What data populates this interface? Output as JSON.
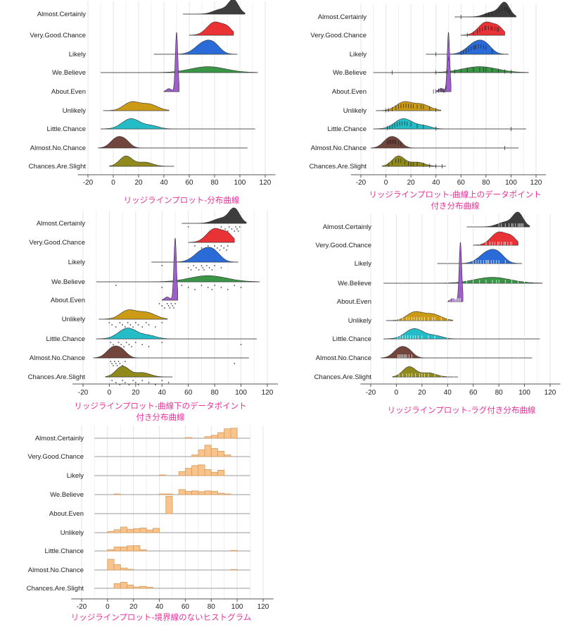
{
  "chart_data": [
    {
      "type": "ridgeline",
      "variant": "density",
      "caption": [
        "リッジラインプロット-分布曲線"
      ],
      "categories": [
        "Almost.Certainly",
        "Very.Good.Chance",
        "Likely",
        "We.Believe",
        "About.Even",
        "Unlikely",
        "Little.Chance",
        "Almost.No.Chance",
        "Chances.Are.Slight"
      ],
      "x_ticks": [
        -20,
        0,
        20,
        40,
        60,
        80,
        100,
        120
      ],
      "xlim": [
        -28,
        128
      ],
      "grid": true
    },
    {
      "type": "ridgeline",
      "variant": "density-with-points-on-curve",
      "caption": [
        "リッジラインプロット-曲線上のデータポイント",
        "付き分布曲線"
      ],
      "categories": [
        "Almost.Certainly",
        "Very.Good.Chance",
        "Likely",
        "We.Believe",
        "About.Even",
        "Unlikely",
        "Little.Chance",
        "Almost.No.Chance",
        "Chances.Are.Slight"
      ],
      "x_ticks": [
        -20,
        0,
        20,
        40,
        60,
        80,
        100,
        120
      ],
      "xlim": [
        -28,
        128
      ],
      "grid": true
    },
    {
      "type": "ridgeline",
      "variant": "density-with-points-below",
      "caption": [
        "リッジラインプロット-曲線下のデータポイント",
        "付き分布曲線"
      ],
      "categories": [
        "Almost.Certainly",
        "Very.Good.Chance",
        "Likely",
        "We.Believe",
        "About.Even",
        "Unlikely",
        "Little.Chance",
        "Almost.No.Chance",
        "Chances.Are.Slight"
      ],
      "x_ticks": [
        -20,
        0,
        20,
        40,
        60,
        80,
        100,
        120
      ],
      "xlim": [
        -28,
        128
      ],
      "grid": true
    },
    {
      "type": "ridgeline",
      "variant": "density-with-rug",
      "caption": [
        "リッジラインプロット-ラグ付き分布曲線"
      ],
      "categories": [
        "Almost.Certainly",
        "Very.Good.Chance",
        "Likely",
        "We.Believe",
        "About.Even",
        "Unlikely",
        "Little.Chance",
        "Almost.No.Chance",
        "Chances.Are.Slight"
      ],
      "x_ticks": [
        -20,
        0,
        20,
        40,
        60,
        80,
        100,
        120
      ],
      "xlim": [
        -28,
        128
      ],
      "grid": true
    },
    {
      "type": "ridgeline",
      "variant": "histogram-no-border",
      "caption": [
        "リッジラインプロット-境界線のないヒストグラム"
      ],
      "categories": [
        "Almost.Certainly",
        "Very.Good.Chance",
        "Likely",
        "We.Believe",
        "About.Even",
        "Unlikely",
        "Little.Chance",
        "Almost.No.Chance",
        "Chances.Are.Slight"
      ],
      "x_ticks": [
        -20,
        0,
        20,
        40,
        60,
        80,
        100,
        120
      ],
      "xlim": [
        -28,
        128
      ],
      "grid": true
    }
  ],
  "series_style": {
    "Almost.Certainly": "#333333",
    "Very.Good.Chance": "#e8272b",
    "Likely": "#1f63d6",
    "We.Believe": "#2f8f3c",
    "About.Even": "#9b55c9",
    "Unlikely": "#c8960c",
    "Little.Chance": "#18b8c4",
    "Almost.No.Chance": "#6a3b33",
    "Chances.Are.Slight": "#8a8410",
    "histogram": "#f8c48c"
  }
}
